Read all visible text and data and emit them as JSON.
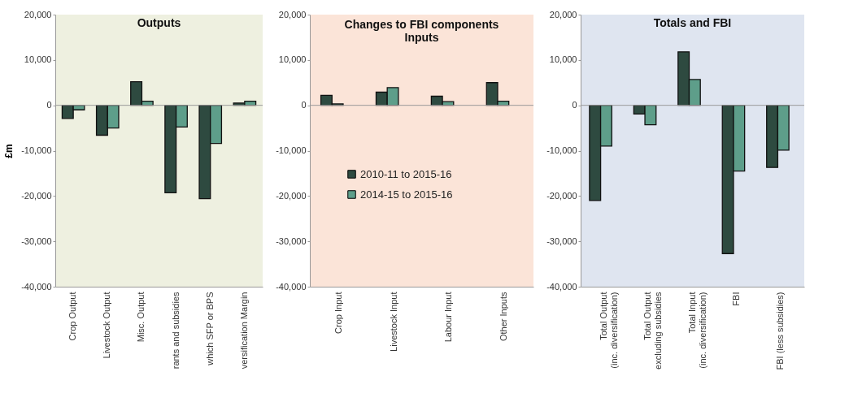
{
  "chart_data": [
    {
      "type": "bar",
      "title": "Outputs",
      "ylabel": "£m",
      "categories": [
        "Crop Output",
        "Livestock Output",
        "Misc. Output",
        "rants and subsidies",
        "which SFP or BPS",
        "versification Margin"
      ],
      "series": [
        {
          "color": "#2e4a40",
          "values": [
            -2900,
            -6600,
            5200,
            -19300,
            -20600,
            500
          ]
        },
        {
          "color": "#5e9e8a",
          "values": [
            -1000,
            -5000,
            900,
            -4800,
            -8400,
            900
          ]
        }
      ],
      "ylim": [
        -40000,
        20000
      ],
      "yticks": [
        {
          "value": -40000,
          "label": "-40,000"
        },
        {
          "value": -30000,
          "label": "-30,000"
        },
        {
          "value": -20000,
          "label": "-20,000"
        },
        {
          "value": -10000,
          "label": "-10,000"
        },
        {
          "value": 0,
          "label": "0"
        },
        {
          "value": 10000,
          "label": "10,000"
        },
        {
          "value": 20000,
          "label": "20,000"
        }
      ],
      "ref_lines": [
        {
          "axis": "y",
          "value": 0,
          "color": "#999999"
        }
      ]
    },
    {
      "type": "bar",
      "title": "Changes to FBI components",
      "subtitle": "Inputs",
      "categories": [
        "Crop Input",
        "Livestock Input",
        "Labour Input",
        "Other Inputs"
      ],
      "series": [
        {
          "name": "2010-11 to 2015-16",
          "color": "#2e4a40",
          "values": [
            2200,
            2900,
            2000,
            5000
          ]
        },
        {
          "name": "2014-15 to 2015-16",
          "color": "#5e9e8a",
          "values": [
            300,
            3900,
            800,
            900
          ]
        }
      ],
      "ylim": [
        -40000,
        20000
      ],
      "yticks": [
        {
          "value": -40000,
          "label": "-40,000"
        },
        {
          "value": -30000,
          "label": "-30,000"
        },
        {
          "value": -20000,
          "label": "-20,000"
        },
        {
          "value": -10000,
          "label": "-10,000"
        },
        {
          "value": 0,
          "label": "0"
        },
        {
          "value": 10000,
          "label": "10,000"
        },
        {
          "value": 20000,
          "label": "20,000"
        }
      ],
      "ref_lines": [
        {
          "axis": "y",
          "value": 0,
          "color": "#999999"
        }
      ],
      "legend": "center"
    },
    {
      "type": "bar",
      "title": "Totals and FBI",
      "categories": [
        "Total Output (inc. diversification)",
        "Total Output excluding subsidies",
        "Total Input (inc. diversification)",
        "FBI",
        "FBI (less subsidies)"
      ],
      "series": [
        {
          "color": "#2e4a40",
          "values": [
            -21000,
            -1900,
            11800,
            -32700,
            -13700
          ]
        },
        {
          "color": "#5e9e8a",
          "values": [
            -9000,
            -4300,
            5700,
            -14500,
            -9900
          ]
        }
      ],
      "ylim": [
        -40000,
        20000
      ],
      "yticks": [
        {
          "value": -40000,
          "label": "-40,000"
        },
        {
          "value": -30000,
          "label": "-30,000"
        },
        {
          "value": -20000,
          "label": "-20,000"
        },
        {
          "value": -10000,
          "label": "-10,000"
        },
        {
          "value": 0,
          "label": "0"
        },
        {
          "value": 10000,
          "label": "10,000"
        },
        {
          "value": 20000,
          "label": "20,000"
        }
      ],
      "ref_lines": [
        {
          "axis": "y",
          "value": 0,
          "color": "#999999"
        }
      ]
    }
  ]
}
